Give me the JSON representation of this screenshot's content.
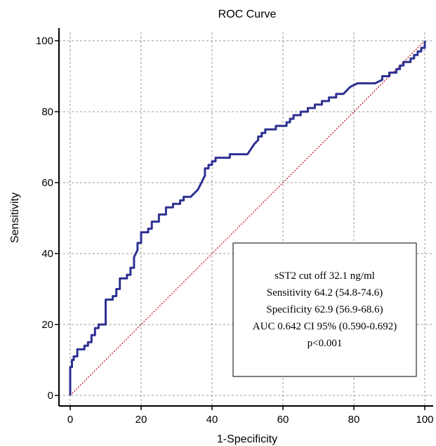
{
  "chart_data": {
    "type": "line",
    "title": "ROC Curve",
    "xlabel": "1-Specificity",
    "ylabel": "Sensitivity",
    "xlim": [
      0,
      100
    ],
    "ylim": [
      0,
      100
    ],
    "xticks": [
      0,
      20,
      40,
      60,
      80,
      100
    ],
    "yticks": [
      0,
      20,
      40,
      60,
      80,
      100
    ],
    "grid": true,
    "colors": {
      "curve": "#2e3192",
      "reference": "#c1272d",
      "grid": "#999999"
    },
    "series": [
      {
        "x": [
          0,
          0,
          0.5,
          0.5,
          1,
          1,
          2,
          2,
          4,
          4,
          5,
          5,
          6,
          6,
          7,
          7,
          8,
          8,
          10,
          10,
          12,
          12,
          13,
          13,
          14,
          14,
          16,
          16,
          17,
          17,
          18,
          18,
          19,
          19,
          20,
          20,
          22,
          22,
          23,
          23,
          25,
          25,
          27,
          27,
          29,
          29,
          31,
          31,
          32,
          32,
          34,
          36,
          37,
          38,
          38,
          39,
          39,
          40,
          40,
          41,
          41,
          45,
          45,
          50,
          52,
          53,
          53,
          54,
          54,
          55,
          55,
          58,
          58,
          61,
          61,
          62,
          62,
          63,
          63,
          65,
          65,
          67,
          67,
          69,
          69,
          71,
          71,
          73,
          73,
          75,
          75,
          77,
          79,
          81,
          83,
          86,
          88,
          88,
          90,
          90,
          91,
          92,
          92,
          93,
          93,
          94,
          94,
          96,
          96,
          97,
          97,
          98,
          98,
          99,
          99,
          100,
          100
        ],
        "y": [
          0,
          8,
          8,
          10,
          10,
          11,
          11,
          13,
          13,
          14,
          14,
          15,
          15,
          17,
          17,
          19,
          19,
          20,
          20,
          27,
          27,
          28,
          28,
          30,
          30,
          33,
          33,
          34,
          34,
          36,
          36,
          39,
          41,
          43,
          43,
          46,
          46,
          47,
          47,
          49,
          49,
          51,
          51,
          53,
          53,
          54,
          54,
          55,
          55,
          56,
          56,
          58,
          60,
          62,
          64,
          64,
          65,
          65,
          66,
          66,
          67,
          67,
          68,
          68,
          71,
          72,
          73,
          73,
          74,
          74,
          75,
          75,
          76,
          76,
          77,
          77,
          78,
          78,
          79,
          79,
          80,
          80,
          81,
          81,
          82,
          82,
          83,
          83,
          84,
          84,
          85,
          85,
          87,
          88,
          88,
          88,
          89,
          90,
          90,
          91,
          91,
          91,
          92,
          92,
          93,
          93,
          94,
          94,
          95,
          95,
          96,
          96,
          97,
          97,
          98,
          98,
          100
        ]
      }
    ],
    "reference_line": {
      "x": [
        0,
        100
      ],
      "y": [
        0,
        100
      ]
    },
    "annotation": {
      "lines": [
        "sST2 cut off 32.1 ng/ml",
        "Sensitivity 64.2 (54.8-74.6)",
        "Specificity 62.9 (56.9-68.6)",
        "AUC 0.642 CI 95% (0.590-0.692)",
        "p<0.001"
      ]
    }
  }
}
